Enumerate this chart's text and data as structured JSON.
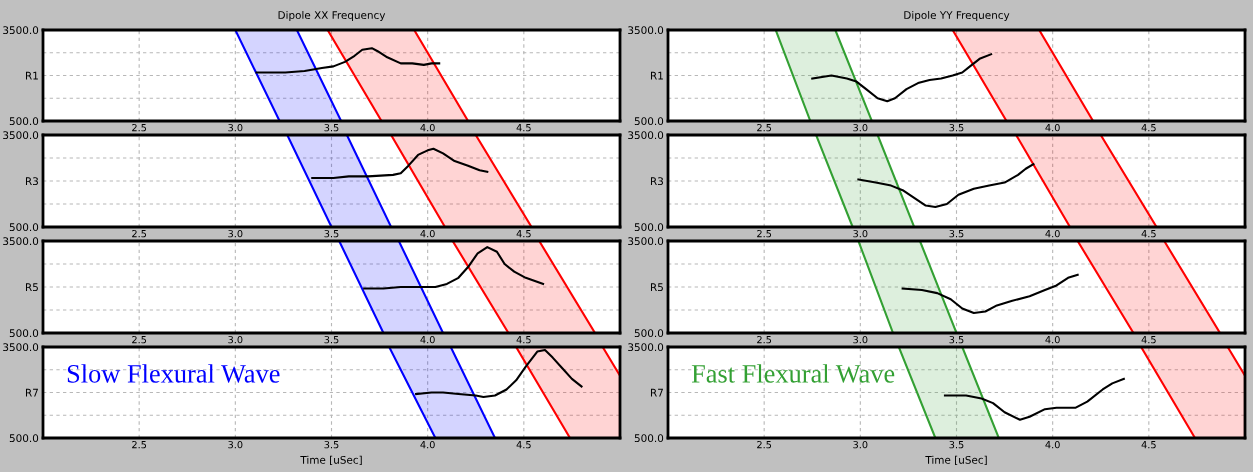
{
  "chart_data": [
    {
      "type": "line",
      "title": "Dipole XX Frequency",
      "xlim": [
        2.0,
        5.0
      ],
      "xticks": [
        {
          "value": 2.5,
          "label": "2.5"
        },
        {
          "value": 3.0,
          "label": "3.0"
        },
        {
          "value": 3.5,
          "label": "3.5"
        },
        {
          "value": 4.0,
          "label": "4.0"
        },
        {
          "value": 4.5,
          "label": "4.5"
        }
      ],
      "ylim": [
        500,
        3500
      ],
      "yticks": [
        {
          "value": 3500,
          "label": "3500.0"
        },
        {
          "value": 2750,
          "label": null
        },
        {
          "value": 2000,
          "label": "R1"
        },
        {
          "value": 1250,
          "label": null
        },
        {
          "value": 500,
          "label": "500.0"
        }
      ],
      "grid": true,
      "series": [
        {
          "type": "area",
          "color": "#0000ff",
          "x": [
            3.0,
            3.32,
            3.55,
            3.23
          ],
          "values": [
            3500,
            3500,
            500,
            500
          ]
        },
        {
          "type": "area",
          "color": "#ff0000",
          "x": [
            3.48,
            3.93,
            4.21,
            3.76
          ],
          "values": [
            3500,
            3500,
            500,
            500
          ]
        },
        {
          "color": "#000000",
          "x": [
            3.11,
            3.16,
            3.26,
            3.36,
            3.45,
            3.51,
            3.57,
            3.62,
            3.66,
            3.71,
            3.74,
            3.79,
            3.86,
            3.92,
            3.98,
            4.02,
            4.06
          ],
          "values": [
            2100,
            2100,
            2100,
            2150,
            2250,
            2300,
            2450,
            2650,
            2850,
            2900,
            2800,
            2600,
            2400,
            2400,
            2350,
            2400,
            2400
          ]
        }
      ]
    },
    {
      "type": "line",
      "xlim": [
        2.0,
        5.0
      ],
      "xticks": [
        {
          "value": 2.5,
          "label": "2.5"
        },
        {
          "value": 3.0,
          "label": "3.0"
        },
        {
          "value": 3.5,
          "label": "3.5"
        },
        {
          "value": 4.0,
          "label": "4.0"
        },
        {
          "value": 4.5,
          "label": "4.5"
        }
      ],
      "ylim": [
        500,
        3500
      ],
      "yticks": [
        {
          "value": 3500,
          "label": "3500.0"
        },
        {
          "value": 2750,
          "label": null
        },
        {
          "value": 2000,
          "label": "R3"
        },
        {
          "value": 1250,
          "label": null
        },
        {
          "value": 500,
          "label": "500.0"
        }
      ],
      "grid": true,
      "series": [
        {
          "type": "area",
          "color": "#0000ff",
          "x": [
            3.27,
            3.58,
            3.81,
            3.5
          ],
          "values": [
            3500,
            3500,
            500,
            500
          ]
        },
        {
          "type": "area",
          "color": "#ff0000",
          "x": [
            3.81,
            4.25,
            4.54,
            4.09
          ],
          "values": [
            3500,
            3500,
            500,
            500
          ]
        },
        {
          "color": "#000000",
          "x": [
            3.4,
            3.51,
            3.59,
            3.69,
            3.82,
            3.86,
            3.9,
            3.95,
            4.0,
            4.03,
            4.08,
            4.14,
            4.21,
            4.27,
            4.31
          ],
          "values": [
            2100,
            2100,
            2150,
            2150,
            2200,
            2250,
            2500,
            2850,
            3000,
            3050,
            2900,
            2650,
            2500,
            2350,
            2300
          ]
        }
      ]
    },
    {
      "type": "line",
      "xlim": [
        2.0,
        5.0
      ],
      "xticks": [
        {
          "value": 2.5,
          "label": "2.5"
        },
        {
          "value": 3.0,
          "label": "3.0"
        },
        {
          "value": 3.5,
          "label": "3.5"
        },
        {
          "value": 4.0,
          "label": "4.0"
        },
        {
          "value": 4.5,
          "label": "4.5"
        }
      ],
      "ylim": [
        500,
        3500
      ],
      "yticks": [
        {
          "value": 3500,
          "label": "3500.0"
        },
        {
          "value": 2750,
          "label": null
        },
        {
          "value": 2000,
          "label": "R5"
        },
        {
          "value": 1250,
          "label": null
        },
        {
          "value": 500,
          "label": "500.0"
        }
      ],
      "grid": true,
      "series": [
        {
          "type": "area",
          "color": "#0000ff",
          "x": [
            3.54,
            3.85,
            4.08,
            3.77
          ],
          "values": [
            3500,
            3500,
            500,
            500
          ]
        },
        {
          "type": "area",
          "color": "#ff0000",
          "x": [
            4.13,
            4.58,
            4.87,
            4.42
          ],
          "values": [
            3500,
            3500,
            500,
            500
          ]
        },
        {
          "color": "#000000",
          "x": [
            3.67,
            3.77,
            3.86,
            3.96,
            4.04,
            4.1,
            4.16,
            4.21,
            4.26,
            4.31,
            4.36,
            4.4,
            4.45,
            4.51,
            4.6
          ],
          "values": [
            1950,
            1950,
            2000,
            2000,
            2000,
            2100,
            2300,
            2650,
            3100,
            3300,
            3150,
            2750,
            2500,
            2300,
            2100
          ]
        }
      ]
    },
    {
      "type": "line",
      "xlabel": "Time [uSec]",
      "annotations": [
        "Slow Flexural Wave"
      ],
      "xlim": [
        2.0,
        5.0
      ],
      "xticks": [
        {
          "value": 2.5,
          "label": "2.5"
        },
        {
          "value": 3.0,
          "label": "3.0"
        },
        {
          "value": 3.5,
          "label": "3.5"
        },
        {
          "value": 4.0,
          "label": "4.0"
        },
        {
          "value": 4.5,
          "label": "4.5"
        }
      ],
      "ylim": [
        500,
        3500
      ],
      "yticks": [
        {
          "value": 3500,
          "label": "3500.0"
        },
        {
          "value": 2750,
          "label": null
        },
        {
          "value": 2000,
          "label": "R7"
        },
        {
          "value": 1250,
          "label": null
        },
        {
          "value": 500,
          "label": "500.0"
        }
      ],
      "grid": true,
      "series": [
        {
          "type": "area",
          "color": "#0000ff",
          "x": [
            3.8,
            4.12,
            4.35,
            4.04
          ],
          "values": [
            3500,
            3500,
            500,
            500
          ]
        },
        {
          "type": "area",
          "color": "#ff0000",
          "x": [
            4.46,
            4.91,
            5.0,
            5.0,
            4.74
          ],
          "values": [
            3500,
            3500,
            2550,
            500,
            500
          ]
        },
        {
          "color": "#000000",
          "x": [
            3.94,
            4.02,
            4.08,
            4.16,
            4.25,
            4.29,
            4.35,
            4.41,
            4.46,
            4.51,
            4.57,
            4.61,
            4.65,
            4.7,
            4.75,
            4.8
          ],
          "values": [
            1950,
            2000,
            2000,
            1950,
            1900,
            1850,
            1900,
            2100,
            2400,
            2850,
            3350,
            3400,
            3150,
            2800,
            2450,
            2200
          ]
        }
      ]
    },
    {
      "type": "line",
      "title": "Dipole YY Frequency",
      "xlim": [
        2.0,
        5.0
      ],
      "xticks": [
        {
          "value": 2.5,
          "label": "2.5"
        },
        {
          "value": 3.0,
          "label": "3.0"
        },
        {
          "value": 3.5,
          "label": "3.5"
        },
        {
          "value": 4.0,
          "label": "4.0"
        },
        {
          "value": 4.5,
          "label": "4.5"
        }
      ],
      "ylim": [
        500,
        3500
      ],
      "yticks": [
        {
          "value": 3500,
          "label": "3500.0"
        },
        {
          "value": 2750,
          "label": null
        },
        {
          "value": 2000,
          "label": "R1"
        },
        {
          "value": 1250,
          "label": null
        },
        {
          "value": 500,
          "label": "500.0"
        }
      ],
      "grid": true,
      "series": [
        {
          "type": "area",
          "color": "#33a033",
          "x": [
            2.56,
            2.87,
            3.06,
            2.74
          ],
          "values": [
            3500,
            3500,
            500,
            500
          ]
        },
        {
          "type": "area",
          "color": "#ff0000",
          "x": [
            3.48,
            3.93,
            4.21,
            3.76
          ],
          "values": [
            3500,
            3500,
            500,
            500
          ]
        },
        {
          "color": "#000000",
          "x": [
            2.75,
            2.85,
            2.93,
            2.98,
            3.03,
            3.09,
            3.14,
            3.18,
            3.24,
            3.3,
            3.36,
            3.42,
            3.48,
            3.53,
            3.57,
            3.62,
            3.68
          ],
          "values": [
            1900,
            2000,
            1900,
            1800,
            1550,
            1250,
            1150,
            1250,
            1550,
            1750,
            1850,
            1900,
            2000,
            2100,
            2300,
            2550,
            2700
          ]
        }
      ]
    },
    {
      "type": "line",
      "xlim": [
        2.0,
        5.0
      ],
      "xticks": [
        {
          "value": 2.5,
          "label": "2.5"
        },
        {
          "value": 3.0,
          "label": "3.0"
        },
        {
          "value": 3.5,
          "label": "3.5"
        },
        {
          "value": 4.0,
          "label": "4.0"
        },
        {
          "value": 4.5,
          "label": "4.5"
        }
      ],
      "ylim": [
        500,
        3500
      ],
      "yticks": [
        {
          "value": 3500,
          "label": "3500.0"
        },
        {
          "value": 2750,
          "label": null
        },
        {
          "value": 2000,
          "label": "R3"
        },
        {
          "value": 1250,
          "label": null
        },
        {
          "value": 500,
          "label": "500.0"
        }
      ],
      "grid": true,
      "series": [
        {
          "type": "area",
          "color": "#33a033",
          "x": [
            2.77,
            3.09,
            3.28,
            2.96
          ],
          "values": [
            3500,
            3500,
            500,
            500
          ]
        },
        {
          "type": "area",
          "color": "#ff0000",
          "x": [
            3.81,
            4.25,
            4.54,
            4.09
          ],
          "values": [
            3500,
            3500,
            500,
            500
          ]
        },
        {
          "color": "#000000",
          "x": [
            2.99,
            3.08,
            3.16,
            3.22,
            3.28,
            3.34,
            3.39,
            3.45,
            3.51,
            3.59,
            3.67,
            3.75,
            3.82,
            3.86,
            3.9
          ],
          "values": [
            2050,
            1950,
            1850,
            1700,
            1450,
            1200,
            1150,
            1250,
            1550,
            1750,
            1850,
            1950,
            2200,
            2400,
            2550
          ]
        }
      ]
    },
    {
      "type": "line",
      "xlim": [
        2.0,
        5.0
      ],
      "xticks": [
        {
          "value": 2.5,
          "label": "2.5"
        },
        {
          "value": 3.0,
          "label": "3.0"
        },
        {
          "value": 3.5,
          "label": "3.5"
        },
        {
          "value": 4.0,
          "label": "4.0"
        },
        {
          "value": 4.5,
          "label": "4.5"
        }
      ],
      "ylim": [
        500,
        3500
      ],
      "yticks": [
        {
          "value": 3500,
          "label": "3500.0"
        },
        {
          "value": 2750,
          "label": null
        },
        {
          "value": 2000,
          "label": "R5"
        },
        {
          "value": 1250,
          "label": null
        },
        {
          "value": 500,
          "label": "500.0"
        }
      ],
      "grid": true,
      "series": [
        {
          "type": "area",
          "color": "#33a033",
          "x": [
            2.99,
            3.31,
            3.5,
            3.17
          ],
          "values": [
            3500,
            3500,
            500,
            500
          ]
        },
        {
          "type": "area",
          "color": "#ff0000",
          "x": [
            4.13,
            4.58,
            4.87,
            4.42
          ],
          "values": [
            3500,
            3500,
            500,
            500
          ]
        },
        {
          "color": "#000000",
          "x": [
            3.22,
            3.32,
            3.4,
            3.47,
            3.53,
            3.59,
            3.65,
            3.71,
            3.79,
            3.88,
            3.96,
            4.02,
            4.08,
            4.13
          ],
          "values": [
            1950,
            1900,
            1800,
            1600,
            1300,
            1150,
            1200,
            1400,
            1550,
            1700,
            1900,
            2050,
            2300,
            2400
          ]
        }
      ]
    },
    {
      "type": "line",
      "xlabel": "Time [uSec]",
      "annotations": [
        "Fast Flexural Wave"
      ],
      "xlim": [
        2.0,
        5.0
      ],
      "xticks": [
        {
          "value": 2.5,
          "label": "2.5"
        },
        {
          "value": 3.0,
          "label": "3.0"
        },
        {
          "value": 3.5,
          "label": "3.5"
        },
        {
          "value": 4.0,
          "label": "4.0"
        },
        {
          "value": 4.5,
          "label": "4.5"
        }
      ],
      "ylim": [
        500,
        3500
      ],
      "yticks": [
        {
          "value": 3500,
          "label": "3500.0"
        },
        {
          "value": 2750,
          "label": null
        },
        {
          "value": 2000,
          "label": "R7"
        },
        {
          "value": 1250,
          "label": null
        },
        {
          "value": 500,
          "label": "500.0"
        }
      ],
      "grid": true,
      "series": [
        {
          "type": "area",
          "color": "#33a033",
          "x": [
            3.2,
            3.53,
            3.72,
            3.39
          ],
          "values": [
            3500,
            3500,
            500,
            500
          ]
        },
        {
          "type": "area",
          "color": "#ff0000",
          "x": [
            4.46,
            4.91,
            5.0,
            5.0,
            4.74
          ],
          "values": [
            3500,
            3500,
            2550,
            500,
            500
          ]
        },
        {
          "color": "#000000",
          "x": [
            3.44,
            3.55,
            3.63,
            3.69,
            3.75,
            3.83,
            3.88,
            3.96,
            4.02,
            4.12,
            4.18,
            4.26,
            4.31,
            4.37
          ],
          "values": [
            1900,
            1900,
            1800,
            1650,
            1350,
            1100,
            1200,
            1450,
            1500,
            1500,
            1700,
            2100,
            2300,
            2450
          ]
        }
      ]
    }
  ]
}
